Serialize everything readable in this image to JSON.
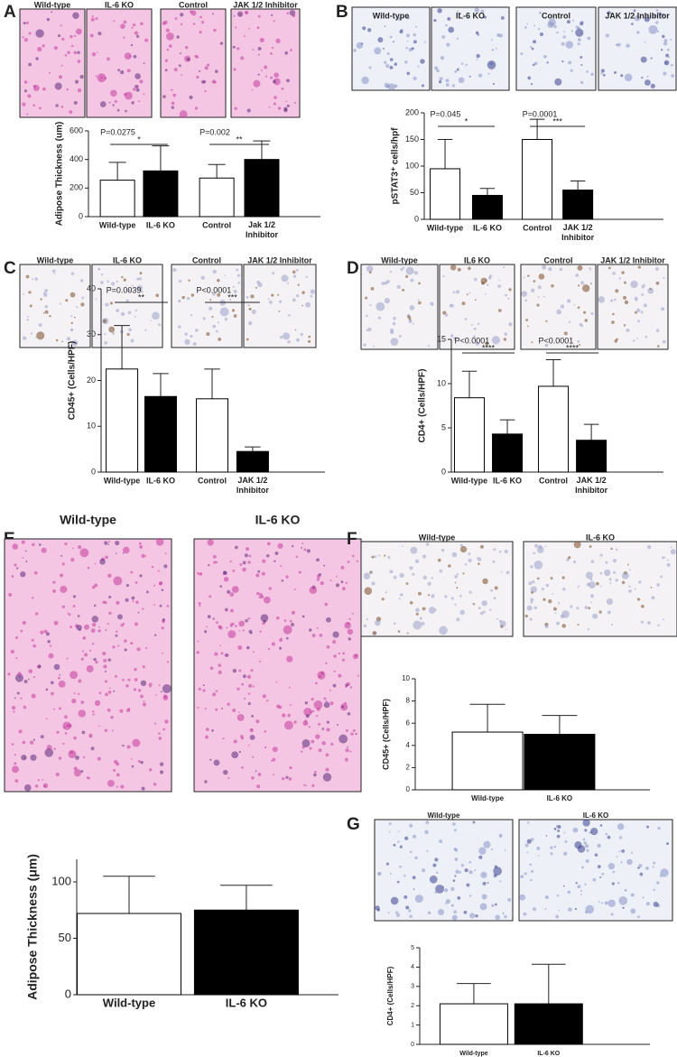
{
  "chart_data": [
    {
      "type": "bar",
      "panel_label": "A",
      "image_labels": [
        "Wild-type",
        "IL-6 KO",
        "Control",
        "JAK 1/2 Inhibitor"
      ],
      "categories": [
        "Wild-type",
        "IL-6 KO",
        "Control",
        "Jak 1/2\nInhibitor"
      ],
      "values": [
        255,
        320,
        270,
        400
      ],
      "errors": [
        125,
        175,
        95,
        130
      ],
      "colors": [
        "#ffffff",
        "#000000",
        "#ffffff",
        "#000000"
      ],
      "ylabel": "Adipose Thickness (um)",
      "ylim": [
        0,
        600
      ],
      "yticks": [
        0,
        200,
        400,
        600
      ],
      "comparisons": [
        {
          "p": "P=0.0275",
          "stars": "*"
        },
        {
          "p": "P=0.002",
          "stars": "**"
        }
      ]
    },
    {
      "type": "bar",
      "panel_label": "B",
      "image_labels": [
        "Wild-type",
        "IL-6 KO",
        "Control",
        "JAK 1/2 Inhibitor"
      ],
      "categories": [
        "Wild-type",
        "IL-6 KO",
        "Control",
        "JAK 1/2\nInhibitor"
      ],
      "values": [
        95,
        45,
        150,
        55
      ],
      "errors": [
        55,
        13,
        38,
        17
      ],
      "colors": [
        "#ffffff",
        "#000000",
        "#ffffff",
        "#000000"
      ],
      "ylabel": "pSTAT3⁺ cells/hpf",
      "ylim": [
        0,
        200
      ],
      "yticks": [
        0,
        50,
        100,
        150,
        200
      ],
      "comparisons": [
        {
          "p": "P=0.045",
          "stars": "*"
        },
        {
          "p": "P=0.0001",
          "stars": "***"
        }
      ]
    },
    {
      "type": "bar",
      "panel_label": "C",
      "image_labels": [
        "Wild-type",
        "IL-6 KO",
        "Control",
        "JAK 1/2 Inhibitor"
      ],
      "categories": [
        "Wild-type",
        "IL-6 KO",
        "Control",
        "JAK 1/2\nInhibitor"
      ],
      "values": [
        22.5,
        16.5,
        16,
        4.5
      ],
      "errors": [
        9.5,
        5,
        6.5,
        1
      ],
      "colors": [
        "#ffffff",
        "#000000",
        "#ffffff",
        "#000000"
      ],
      "ylabel": "CD45+ (Cells/HPF)",
      "ylim": [
        0,
        40
      ],
      "yticks": [
        0,
        10,
        20,
        30,
        40
      ],
      "comparisons": [
        {
          "p": "P=0.0039",
          "stars": "**"
        },
        {
          "p": "P<0.0001",
          "stars": "***"
        }
      ]
    },
    {
      "type": "bar",
      "panel_label": "D",
      "image_labels": [
        "Wild-type",
        "IL6 KO",
        "Control",
        "JAK 1/2 Inhibitor"
      ],
      "categories": [
        "Wild-type",
        "IL-6 KO",
        "Control",
        "JAK 1/2\nInhibitor"
      ],
      "values": [
        8.4,
        4.3,
        9.7,
        3.6
      ],
      "errors": [
        3,
        1.6,
        3,
        1.8
      ],
      "colors": [
        "#ffffff",
        "#000000",
        "#ffffff",
        "#000000"
      ],
      "ylabel": "CD4+ (Cells/HPF)",
      "ylim": [
        0,
        15
      ],
      "yticks": [
        0,
        5,
        10,
        15
      ],
      "comparisons": [
        {
          "p": "P<0.0001",
          "stars": "****"
        },
        {
          "p": "P<0.0001",
          "stars": "****"
        }
      ]
    },
    {
      "type": "bar",
      "panel_label": "E",
      "image_labels": [
        "Wild-type",
        "IL-6 KO"
      ],
      "categories": [
        "Wild-type",
        "IL-6 KO"
      ],
      "values": [
        72,
        75
      ],
      "errors": [
        33,
        22
      ],
      "colors": [
        "#ffffff",
        "#000000"
      ],
      "ylabel": "Adipose Thickness (μm)",
      "ylim": [
        0,
        120
      ],
      "yticks": [
        0,
        50,
        100
      ]
    },
    {
      "type": "bar",
      "panel_label": "F",
      "image_labels": [
        "Wild-type",
        "IL-6 KO"
      ],
      "categories": [
        "Wild-type",
        "IL-6 KO"
      ],
      "values": [
        5.2,
        5.0
      ],
      "errors": [
        2.5,
        1.7
      ],
      "colors": [
        "#ffffff",
        "#000000"
      ],
      "ylabel": "CD45+ (Cells/HPF)",
      "ylim": [
        0,
        10
      ],
      "yticks": [
        0,
        2,
        4,
        6,
        8,
        10
      ]
    },
    {
      "type": "bar",
      "panel_label": "G",
      "image_labels": [
        "Wild-type",
        "IL-6 KO"
      ],
      "categories": [
        "Wild-type",
        "IL-6 KO"
      ],
      "values": [
        2.1,
        2.1
      ],
      "errors": [
        1.05,
        2.05
      ],
      "colors": [
        "#ffffff",
        "#000000"
      ],
      "ylabel": "CD4+ (Cells/HPF)",
      "ylim": [
        0,
        5
      ],
      "yticks": [
        0,
        1,
        2,
        3,
        4,
        5
      ]
    }
  ]
}
